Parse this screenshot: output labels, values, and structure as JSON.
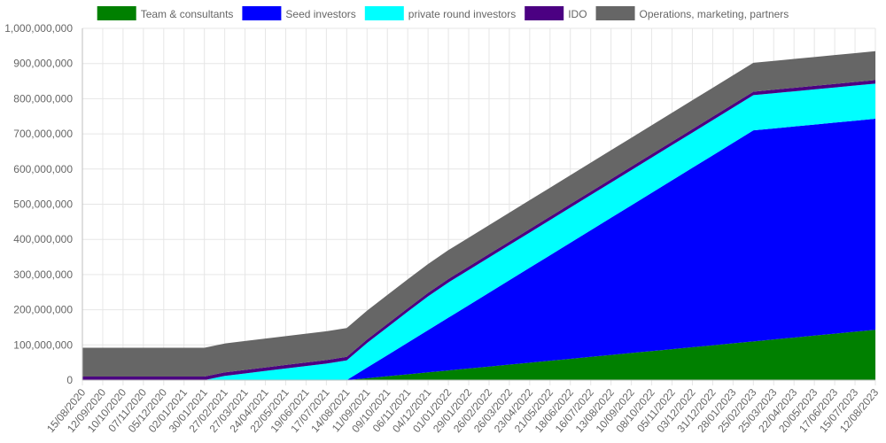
{
  "chart_data": {
    "type": "area",
    "stacked": true,
    "legend_position": "top",
    "grid": true,
    "ylim": [
      0,
      1000000000
    ],
    "y_ticks": [
      0,
      100000000,
      200000000,
      300000000,
      400000000,
      500000000,
      600000000,
      700000000,
      800000000,
      900000000,
      1000000000
    ],
    "y_tick_labels": [
      "0",
      "100,000,000",
      "200,000,000",
      "300,000,000",
      "400,000,000",
      "500,000,000",
      "600,000,000",
      "700,000,000",
      "800,000,000",
      "900,000,000",
      "1,000,000,000"
    ],
    "categories": [
      "15/08/2020",
      "12/09/2020",
      "10/10/2020",
      "07/11/2020",
      "05/12/2020",
      "02/01/2021",
      "30/01/2021",
      "27/02/2021",
      "27/03/2021",
      "24/04/2021",
      "22/05/2021",
      "19/06/2021",
      "17/07/2021",
      "14/08/2021",
      "11/09/2021",
      "09/10/2021",
      "06/11/2021",
      "04/12/2021",
      "01/01/2022",
      "29/01/2022",
      "26/02/2022",
      "26/03/2022",
      "23/04/2022",
      "21/05/2022",
      "18/06/2022",
      "16/07/2022",
      "13/08/2022",
      "10/09/2022",
      "08/10/2022",
      "05/11/2022",
      "03/12/2022",
      "31/12/2022",
      "28/01/2023",
      "25/02/2023",
      "25/03/2023",
      "22/04/2023",
      "20/05/2023",
      "17/06/2023",
      "15/07/2023",
      "12/08/2023"
    ],
    "series": [
      {
        "name": "Team & consultants",
        "color": "#008000",
        "values": [
          0,
          0,
          0,
          0,
          0,
          0,
          0,
          0,
          0,
          0,
          0,
          0,
          0,
          0,
          5500000,
          11000000,
          16500000,
          22000000,
          27500000,
          33000000,
          38500000,
          44000000,
          49500000,
          55000000,
          60500000,
          66000000,
          71500000,
          77000000,
          82500000,
          88000000,
          93500000,
          99000000,
          104500000,
          110000000,
          115500000,
          121000000,
          126500000,
          132000000,
          137500000,
          143000000
        ]
      },
      {
        "name": "Seed investors",
        "color": "#0000ff",
        "values": [
          0,
          0,
          0,
          0,
          0,
          0,
          0,
          0,
          0,
          0,
          0,
          0,
          0,
          0,
          30000000,
          60000000,
          90000000,
          120000000,
          150000000,
          180000000,
          210000000,
          240000000,
          270000000,
          300000000,
          330000000,
          360000000,
          390000000,
          420000000,
          450000000,
          480000000,
          510000000,
          540000000,
          570000000,
          600000000,
          600000000,
          600000000,
          600000000,
          600000000,
          600000000,
          600000000
        ]
      },
      {
        "name": "private round investors",
        "color": "#00ffff",
        "values": [
          0,
          0,
          0,
          0,
          0,
          0,
          0,
          12000000,
          19000000,
          26000000,
          33000000,
          40000000,
          47000000,
          56000000,
          70000000,
          79000000,
          88000000,
          96000000,
          100000000,
          100000000,
          100000000,
          100000000,
          100000000,
          100000000,
          100000000,
          100000000,
          100000000,
          100000000,
          100000000,
          100000000,
          100000000,
          100000000,
          100000000,
          100000000,
          100000000,
          100000000,
          100000000,
          100000000,
          100000000,
          100000000
        ]
      },
      {
        "name": "IDO",
        "color": "#4b0082",
        "values": [
          10000000,
          10000000,
          10000000,
          10000000,
          10000000,
          10000000,
          10000000,
          10000000,
          10000000,
          10000000,
          10000000,
          10000000,
          10000000,
          10000000,
          10000000,
          10000000,
          10000000,
          10000000,
          10000000,
          10000000,
          10000000,
          10000000,
          10000000,
          10000000,
          10000000,
          10000000,
          10000000,
          10000000,
          10000000,
          10000000,
          10000000,
          10000000,
          10000000,
          10000000,
          10000000,
          10000000,
          10000000,
          10000000,
          10000000,
          10000000
        ]
      },
      {
        "name": "Operations, marketing, partners",
        "color": "#666666",
        "values": [
          82000000,
          82000000,
          82000000,
          82000000,
          82000000,
          82000000,
          82000000,
          82000000,
          82000000,
          82000000,
          82000000,
          82000000,
          82000000,
          82000000,
          82000000,
          82000000,
          82000000,
          82000000,
          82000000,
          82000000,
          82000000,
          82000000,
          82000000,
          82000000,
          82000000,
          82000000,
          82000000,
          82000000,
          82000000,
          82000000,
          82000000,
          82000000,
          82000000,
          82000000,
          82000000,
          82000000,
          82000000,
          82000000,
          82000000,
          82000000
        ]
      }
    ]
  }
}
